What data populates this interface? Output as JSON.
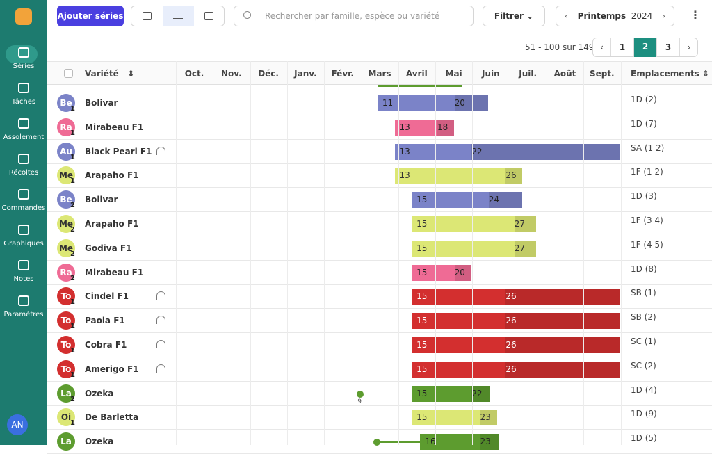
{
  "sidebar": {
    "items": [
      "Séries",
      "Tâches",
      "Assolement",
      "Récoltes",
      "Commandes",
      "Graphiques",
      "Notes",
      "Paramètres"
    ],
    "user": "AN"
  },
  "toolbar": {
    "add_button": "Ajouter séries",
    "search_placeholder": "Rechercher par famille, espèce ou variété",
    "filter": "Filtrer",
    "season": "Printemps",
    "year": "2024"
  },
  "pagination": {
    "range": "51 - 100 sur 149",
    "pages": [
      "1",
      "2",
      "3"
    ]
  },
  "table": {
    "columns": {
      "variety": "Variété",
      "months": [
        "Oct.",
        "Nov.",
        "Déc.",
        "Janv.",
        "Févr.",
        "Mars",
        "Avril",
        "Mai",
        "Juin",
        "Juil.",
        "Août",
        "Sept."
      ],
      "locations": "Emplacements"
    },
    "rows": [
      {
        "crop": "Be",
        "series": "1",
        "variety": "Bolivar",
        "tunnel": false,
        "start": 11,
        "harvest": 20,
        "location": "1D (2)",
        "color": "#7b83c8"
      },
      {
        "crop": "Ra",
        "series": "1",
        "variety": "Mirabeau F1",
        "tunnel": false,
        "start": 13,
        "harvest": 18,
        "location": "1D (7)",
        "color": "#ef6b95"
      },
      {
        "crop": "Au",
        "series": "1",
        "variety": "Black Pearl F1",
        "tunnel": true,
        "start": 13,
        "harvest": 22,
        "location": "SA (1 2)",
        "color": "#7b83c8"
      },
      {
        "crop": "Me",
        "series": "1",
        "variety": "Arapaho F1",
        "tunnel": false,
        "start": 13,
        "harvest": 26,
        "location": "1F (1 2)",
        "color": "#dce775"
      },
      {
        "crop": "Be",
        "series": "2",
        "variety": "Bolivar",
        "tunnel": false,
        "start": 15,
        "harvest": 24,
        "location": "1D (3)",
        "color": "#7b83c8"
      },
      {
        "crop": "Me",
        "series": "2",
        "variety": "Arapaho F1",
        "tunnel": false,
        "start": 15,
        "harvest": 27,
        "location": "1F (3 4)",
        "color": "#dce775"
      },
      {
        "crop": "Me",
        "series": "2",
        "variety": "Godiva F1",
        "tunnel": false,
        "start": 15,
        "harvest": 27,
        "location": "1F (4 5)",
        "color": "#dce775"
      },
      {
        "crop": "Ra",
        "series": "2",
        "variety": "Mirabeau F1",
        "tunnel": false,
        "start": 15,
        "harvest": 20,
        "location": "1D (8)",
        "color": "#ef6b95"
      },
      {
        "crop": "To",
        "series": "1",
        "variety": "Cindel F1",
        "tunnel": true,
        "start": 15,
        "harvest": 26,
        "location": "SB (1)",
        "color": "#d32f2f"
      },
      {
        "crop": "To",
        "series": "1",
        "variety": "Paola F1",
        "tunnel": true,
        "start": 15,
        "harvest": 26,
        "location": "SB (2)",
        "color": "#d32f2f"
      },
      {
        "crop": "To",
        "series": "1",
        "variety": "Cobra F1",
        "tunnel": true,
        "start": 15,
        "harvest": 26,
        "location": "SC (1)",
        "color": "#d32f2f"
      },
      {
        "crop": "To",
        "series": "1",
        "variety": "Amerigo F1",
        "tunnel": true,
        "start": 15,
        "harvest": 26,
        "location": "SC (2)",
        "color": "#d32f2f"
      },
      {
        "crop": "La",
        "series": "2",
        "variety": "Ozeka",
        "tunnel": false,
        "sowing": 9,
        "start": 15,
        "harvest": 22,
        "location": "1D (4)",
        "color": "#5d9c2f"
      },
      {
        "crop": "Oi",
        "series": "1",
        "variety": "De Barletta",
        "tunnel": false,
        "start": 15,
        "harvest": 23,
        "location": "1D (9)",
        "color": "#dce775"
      },
      {
        "crop": "La",
        "variety": "Ozeka",
        "tunnel": false,
        "start": 16,
        "harvest": 23,
        "location": "1D (5)",
        "color": "#5d9c2f"
      }
    ]
  }
}
